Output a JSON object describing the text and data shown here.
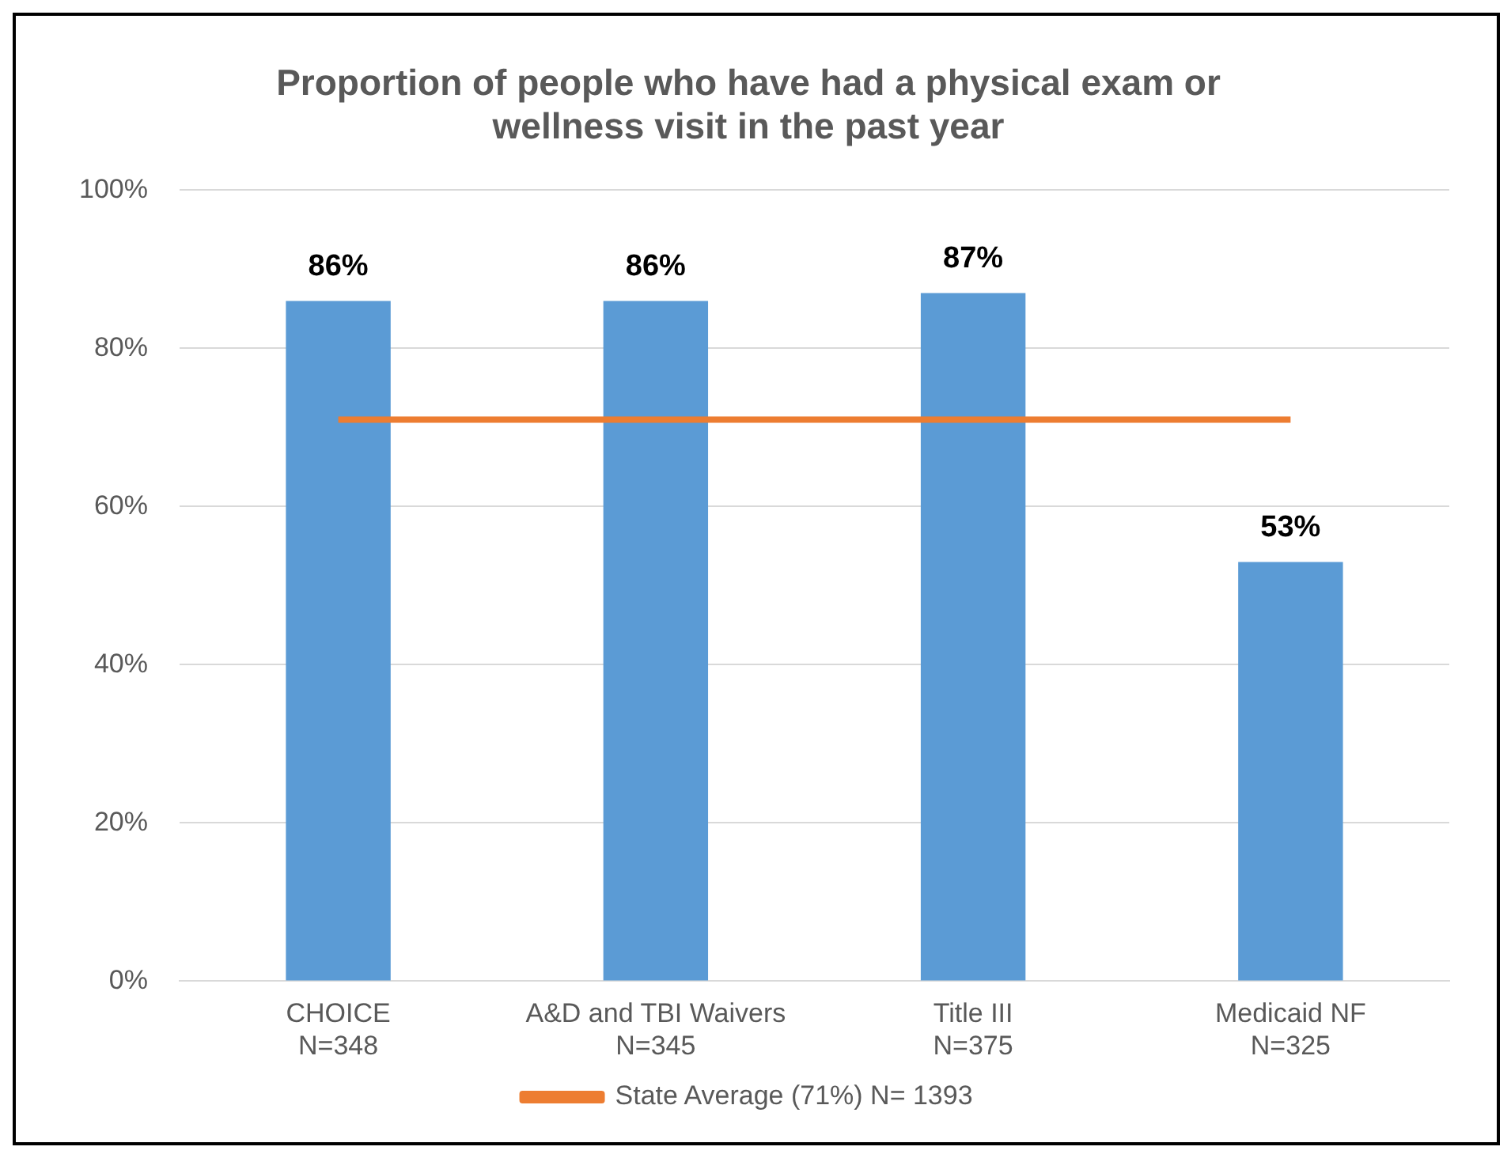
{
  "chart_data": {
    "type": "bar",
    "title": "Proportion of people who have had a physical exam or wellness visit in the past year",
    "categories": [
      "CHOICE\nN=348",
      "A&D and TBI Waivers\nN=345",
      "Title III\nN=375",
      "Medicaid NF\nN=325"
    ],
    "series": [
      {
        "color": "#5b9bd5",
        "values": [
          86,
          86,
          87,
          53
        ],
        "value_labels": [
          "86%",
          "86%",
          "87%",
          "53%"
        ]
      },
      {
        "type": "line",
        "name": "State Average (71%) N= 1393",
        "color": "#ed7d31",
        "values": [
          71,
          71,
          71,
          71
        ],
        "marker": "none"
      }
    ],
    "ylim": [
      0,
      100
    ],
    "yticks": [
      {
        "value": 0,
        "label": "0%"
      },
      {
        "value": 20,
        "label": "20%"
      },
      {
        "value": 40,
        "label": "40%"
      },
      {
        "value": 60,
        "label": "60%"
      },
      {
        "value": 80,
        "label": "80%"
      },
      {
        "value": 100,
        "label": "100%"
      }
    ],
    "grid": "y",
    "legend": "bottom"
  }
}
